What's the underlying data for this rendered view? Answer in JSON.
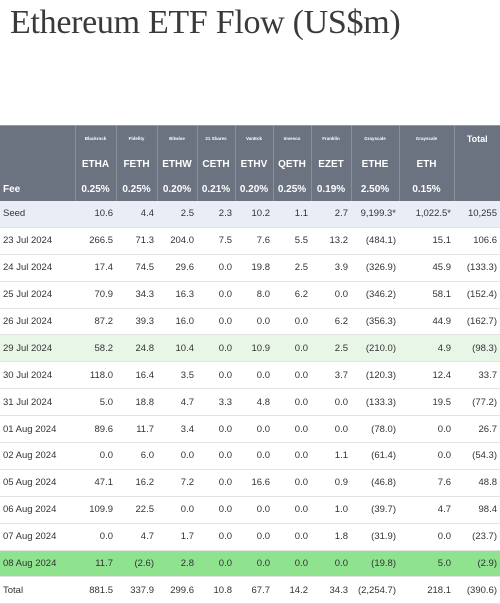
{
  "title": "Ethereum ETF Flow (US$m)",
  "columns": [
    {
      "issuer": "Blackrock",
      "ticker": "ETHA",
      "fee": "0.25%"
    },
    {
      "issuer": "Fidelity",
      "ticker": "FETH",
      "fee": "0.25%"
    },
    {
      "issuer": "Bitwise",
      "ticker": "ETHW",
      "fee": "0.20%"
    },
    {
      "issuer": "21 Shares",
      "ticker": "CETH",
      "fee": "0.21%"
    },
    {
      "issuer": "VanEck",
      "ticker": "ETHV",
      "fee": "0.20%"
    },
    {
      "issuer": "Invesco",
      "ticker": "QETH",
      "fee": "0.25%"
    },
    {
      "issuer": "Franklin",
      "ticker": "EZET",
      "fee": "0.19%"
    },
    {
      "issuer": "Grayscale",
      "ticker": "ETHE",
      "fee": "2.50%"
    },
    {
      "issuer": "Grayscale",
      "ticker": "ETH",
      "fee": "0.15%"
    }
  ],
  "total_header": "Total",
  "fee_label": "Fee",
  "rows": [
    {
      "label": "Seed",
      "style": "seed",
      "values": [
        "10.6",
        "4.4",
        "2.5",
        "2.3",
        "10.2",
        "1.1",
        "2.7",
        "9,199.3*",
        "1,022.5*",
        "10,255"
      ]
    },
    {
      "label": "23 Jul 2024",
      "style": "",
      "values": [
        "266.5",
        "71.3",
        "204.0",
        "7.5",
        "7.6",
        "5.5",
        "13.2",
        "(484.1)",
        "15.1",
        "106.6"
      ]
    },
    {
      "label": "24 Jul 2024",
      "style": "",
      "values": [
        "17.4",
        "74.5",
        "29.6",
        "0.0",
        "19.8",
        "2.5",
        "3.9",
        "(326.9)",
        "45.9",
        "(133.3)"
      ]
    },
    {
      "label": "25 Jul 2024",
      "style": "",
      "values": [
        "70.9",
        "34.3",
        "16.3",
        "0.0",
        "8.0",
        "6.2",
        "0.0",
        "(346.2)",
        "58.1",
        "(152.4)"
      ]
    },
    {
      "label": "26 Jul 2024",
      "style": "",
      "values": [
        "87.2",
        "39.3",
        "16.0",
        "0.0",
        "0.0",
        "0.0",
        "6.2",
        "(356.3)",
        "44.9",
        "(162.7)"
      ]
    },
    {
      "label": "29 Jul 2024",
      "style": "green",
      "values": [
        "58.2",
        "24.8",
        "10.4",
        "0.0",
        "10.9",
        "0.0",
        "2.5",
        "(210.0)",
        "4.9",
        "(98.3)"
      ]
    },
    {
      "label": "30 Jul 2024",
      "style": "",
      "values": [
        "118.0",
        "16.4",
        "3.5",
        "0.0",
        "0.0",
        "0.0",
        "3.7",
        "(120.3)",
        "12.4",
        "33.7"
      ]
    },
    {
      "label": "31 Jul 2024",
      "style": "",
      "values": [
        "5.0",
        "18.8",
        "4.7",
        "3.3",
        "4.8",
        "0.0",
        "0.0",
        "(133.3)",
        "19.5",
        "(77.2)"
      ]
    },
    {
      "label": "01 Aug 2024",
      "style": "",
      "values": [
        "89.6",
        "11.7",
        "3.4",
        "0.0",
        "0.0",
        "0.0",
        "0.0",
        "(78.0)",
        "0.0",
        "26.7"
      ]
    },
    {
      "label": "02 Aug 2024",
      "style": "",
      "values": [
        "0.0",
        "6.0",
        "0.0",
        "0.0",
        "0.0",
        "0.0",
        "1.1",
        "(61.4)",
        "0.0",
        "(54.3)"
      ]
    },
    {
      "label": "05 Aug 2024",
      "style": "",
      "values": [
        "47.1",
        "16.2",
        "7.2",
        "0.0",
        "16.6",
        "0.0",
        "0.9",
        "(46.8)",
        "7.6",
        "48.8"
      ]
    },
    {
      "label": "06 Aug 2024",
      "style": "",
      "values": [
        "109.9",
        "22.5",
        "0.0",
        "0.0",
        "0.0",
        "0.0",
        "1.0",
        "(39.7)",
        "4.7",
        "98.4"
      ]
    },
    {
      "label": "07 Aug 2024",
      "style": "",
      "values": [
        "0.0",
        "4.7",
        "1.7",
        "0.0",
        "0.0",
        "0.0",
        "1.8",
        "(31.9)",
        "0.0",
        "(23.7)"
      ]
    },
    {
      "label": "08 Aug 2024",
      "style": "bright",
      "values": [
        "11.7",
        "(2.6)",
        "2.8",
        "0.0",
        "0.0",
        "0.0",
        "0.0",
        "(19.8)",
        "5.0",
        "(2.9)"
      ]
    },
    {
      "label": "Total",
      "style": "total",
      "values": [
        "881.5",
        "337.9",
        "299.6",
        "10.8",
        "67.7",
        "14.2",
        "34.3",
        "(2,254.7)",
        "218.1",
        "(390.6)"
      ]
    }
  ]
}
